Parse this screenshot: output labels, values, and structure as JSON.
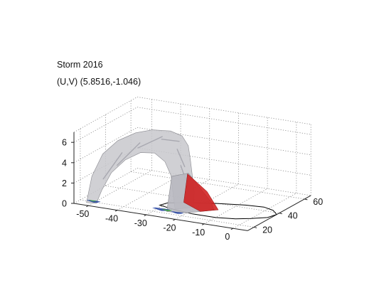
{
  "title_line1": "Storm 2016",
  "title_line2": "(U,V) (5.8516,-1.046)",
  "chart_data": {
    "type": "surface3d",
    "title": "Storm 2016",
    "subtitle": "(U,V) (5.8516,-1.046)",
    "axes": {
      "x": {
        "ticks": [
          -50,
          -40,
          -30,
          -20,
          -10,
          0
        ],
        "lim": [
          -55,
          5
        ]
      },
      "y": {
        "ticks": [
          20,
          40,
          60
        ],
        "lim": [
          15,
          65
        ]
      },
      "z": {
        "ticks": [
          0,
          2,
          4,
          6
        ],
        "lim": [
          0,
          7
        ]
      }
    },
    "grid": true,
    "colors": {
      "isosurface": "#c8c8cc",
      "isosurface_edge": "#8a8a90",
      "red_region": "#d01818",
      "blue_region": "#2040a0",
      "green_region": "#40a040",
      "axis": "#222222",
      "grid": "#888888",
      "ground_outline": "#000000"
    },
    "series": [
      {
        "values": []
      }
    ]
  }
}
